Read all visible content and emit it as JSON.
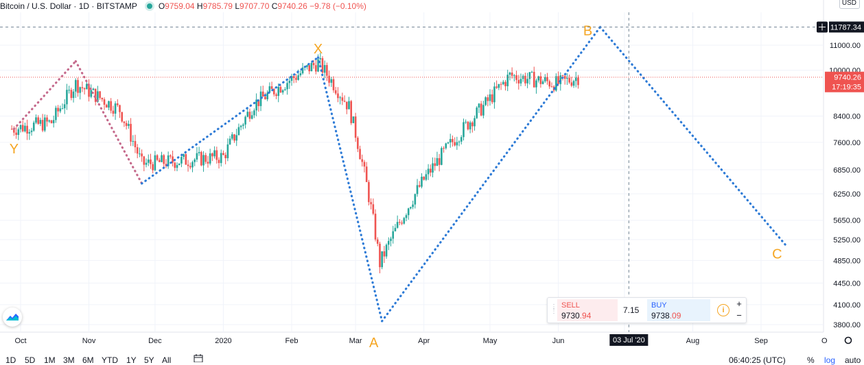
{
  "header": {
    "symbol": "Bitcoin / U.S. Dollar · 1D · BITSTAMP",
    "open": "9759.04",
    "high": "9785.79",
    "low": "9707.70",
    "close": "9740.26",
    "change": "−9.78 (−0.10%)"
  },
  "currency_button": "USD",
  "chart_data": {
    "type": "candlestick",
    "y_scale": "log",
    "ylim": [
      3700,
      13800
    ],
    "price_axis_ticks": [
      "11000.00",
      "10000.00",
      "8400.00",
      "7600.00",
      "6850.00",
      "6250.00",
      "5650.00",
      "5250.00",
      "4850.00",
      "4450.00",
      "4100.00",
      "3800.00"
    ],
    "price_axis_values": [
      11000,
      10000,
      8400,
      7600,
      6850,
      6250,
      5650,
      5250,
      4850,
      4450,
      4100,
      3800
    ],
    "time_axis_ticks": [
      "Oct",
      "Nov",
      "Dec",
      "2020",
      "Feb",
      "Mar",
      "Apr",
      "May",
      "Jun",
      "Jul",
      "Aug",
      "Sep"
    ],
    "time_axis_dates": [
      "2019-10-01",
      "2019-11-01",
      "2019-12-01",
      "2020-01-01",
      "2020-02-01",
      "2020-03-01",
      "2020-04-01",
      "2020-05-01",
      "2020-06-01",
      "2020-07-01",
      "2020-08-01",
      "2020-09-01"
    ],
    "series_monthly_closes": [
      {
        "date": "2019-09-27",
        "close": 8000
      },
      {
        "date": "2019-10-15",
        "close": 8200
      },
      {
        "date": "2019-10-26",
        "close": 9500
      },
      {
        "date": "2019-11-15",
        "close": 8600
      },
      {
        "date": "2019-11-25",
        "close": 7000
      },
      {
        "date": "2019-12-15",
        "close": 7100
      },
      {
        "date": "2020-01-01",
        "close": 7200
      },
      {
        "date": "2020-01-15",
        "close": 8800
      },
      {
        "date": "2020-02-13",
        "close": 10300
      },
      {
        "date": "2020-02-27",
        "close": 8700
      },
      {
        "date": "2020-03-12",
        "close": 4800
      },
      {
        "date": "2020-04-01",
        "close": 6600
      },
      {
        "date": "2020-04-29",
        "close": 8800
      },
      {
        "date": "2020-05-10",
        "close": 9800
      },
      {
        "date": "2020-06-01",
        "close": 9500
      },
      {
        "date": "2020-06-10",
        "close": 9740
      }
    ],
    "pattern_points": {
      "Y": {
        "label": "Y",
        "date": "2019-09-28",
        "price": 8000
      },
      "Y2": {
        "date": "2019-10-26",
        "price": 10350
      },
      "low": {
        "date": "2019-11-25",
        "price": 6500
      },
      "X": {
        "label": "X",
        "date": "2020-02-13",
        "price": 10500
      },
      "A": {
        "label": "A",
        "date": "2020-03-13",
        "price": 3850
      },
      "B": {
        "label": "B",
        "date": "2020-06-20",
        "price": 11787.34
      },
      "C": {
        "label": "C",
        "date": "2020-09-12",
        "price": 5150
      }
    },
    "crosshair": {
      "date_label": "03 Jul '20",
      "price_label": "11787.34"
    },
    "last_price": {
      "value": "9740.26",
      "countdown": "17:19:35"
    },
    "colors": {
      "up": "#26a69a",
      "down": "#ef5350",
      "pattern_blue": "#2e7bd6",
      "pattern_pink": "#c56a8c",
      "label_orange": "#f5a623",
      "grid": "#f0f3fa"
    }
  },
  "trade_widget": {
    "sell_label": "SELL",
    "sell_price_main": "9730",
    "sell_price_hl": ".94",
    "spread": "7.15",
    "buy_label": "BUY",
    "buy_price_main": "9738",
    "buy_price_hl": ".09",
    "plus": "+",
    "minus": "−"
  },
  "bottom_bar": {
    "ranges": [
      "1D",
      "5D",
      "1M",
      "3M",
      "6M",
      "YTD",
      "1Y",
      "5Y",
      "All"
    ],
    "clock": "06:40:25 (UTC)",
    "percent": "%",
    "log": "log",
    "auto": "auto"
  },
  "axis_edge_label": "O"
}
